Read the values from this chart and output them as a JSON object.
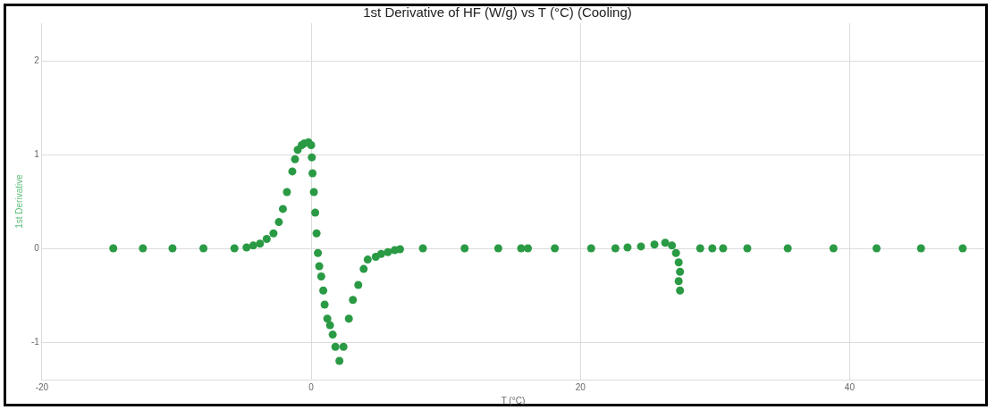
{
  "chart_data": {
    "type": "scatter",
    "title": "1st Derivative of HF (W/g) vs T (°C) (Cooling)",
    "xlabel": "T (°C)",
    "ylabel": "1st Derivative",
    "xlim": [
      -20,
      50
    ],
    "xticks": [
      -20,
      0,
      20,
      40
    ],
    "ylim": [
      -1.4,
      2.4
    ],
    "yticks": [
      -1,
      0,
      1,
      2
    ],
    "grid": true,
    "marker": "circle",
    "legend": false,
    "series": [
      {
        "color": "#2a9a44",
        "x": [
          -14.7,
          -12.5,
          -10.3,
          -8.0,
          -5.7,
          -4.8,
          -4.3,
          -3.8,
          -3.3,
          -2.8,
          -2.4,
          -2.1,
          -1.8,
          -1.4,
          -1.2,
          -1.0,
          -0.7,
          -0.5,
          -0.2,
          0.0,
          0.05,
          0.1,
          0.2,
          0.3,
          0.4,
          0.5,
          0.6,
          0.75,
          0.9,
          1.0,
          1.2,
          1.4,
          1.6,
          1.8,
          2.1,
          2.4,
          2.8,
          3.1,
          3.5,
          3.9,
          4.2,
          4.8,
          5.2,
          5.7,
          6.2,
          6.6,
          8.3,
          11.4,
          13.9,
          15.6,
          16.1,
          18.1,
          20.8,
          22.6,
          23.5,
          24.5,
          25.5,
          26.3,
          26.8,
          27.1,
          27.3,
          27.4,
          27.3,
          27.4,
          28.9,
          29.8,
          30.6,
          32.4,
          35.4,
          38.8,
          42.0,
          45.3,
          48.4
        ],
        "values": [
          0,
          0,
          0,
          0,
          0,
          0.01,
          0.03,
          0.05,
          0.1,
          0.16,
          0.28,
          0.42,
          0.6,
          0.82,
          0.95,
          1.05,
          1.1,
          1.12,
          1.13,
          1.1,
          0.97,
          0.8,
          0.6,
          0.38,
          0.16,
          -0.05,
          -0.19,
          -0.3,
          -0.45,
          -0.6,
          -0.75,
          -0.82,
          -0.92,
          -1.05,
          -1.2,
          -1.05,
          -0.75,
          -0.55,
          -0.39,
          -0.22,
          -0.12,
          -0.09,
          -0.06,
          -0.04,
          -0.02,
          -0.01,
          0,
          0,
          0,
          0,
          0,
          0,
          0,
          0,
          0.01,
          0.02,
          0.04,
          0.06,
          0.03,
          -0.05,
          -0.15,
          -0.25,
          -0.35,
          -0.45,
          0,
          0,
          0,
          0,
          0,
          0,
          0,
          0,
          0
        ]
      }
    ]
  }
}
